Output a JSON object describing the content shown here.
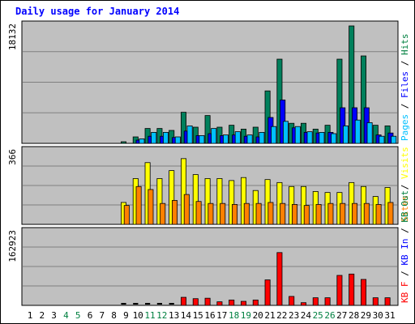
{
  "chart_data": {
    "type": "bar",
    "title": "Daily usage for January 2014",
    "categories": [
      "1",
      "2",
      "3",
      "4",
      "5",
      "6",
      "7",
      "8",
      "9",
      "10",
      "11",
      "12",
      "13",
      "14",
      "15",
      "16",
      "17",
      "18",
      "19",
      "20",
      "21",
      "22",
      "23",
      "24",
      "25",
      "26",
      "27",
      "28",
      "29",
      "30",
      "31"
    ],
    "weekend_days": [
      "4",
      "5",
      "11",
      "12",
      "18",
      "19",
      "25",
      "26"
    ],
    "panels": [
      {
        "id": "top",
        "max_label": "18132",
        "ylim": [
          0,
          18132
        ],
        "legend": [
          {
            "text": "Pages",
            "color": "#00c0ff"
          },
          {
            "text": " / ",
            "color": "#000000"
          },
          {
            "text": "Files",
            "color": "#0000ff"
          },
          {
            "text": " / ",
            "color": "#000000"
          },
          {
            "text": "Hits",
            "color": "#008040"
          }
        ],
        "series": [
          {
            "name": "Hits",
            "color": "#00805c",
            "values": [
              0,
              0,
              0,
              0,
              0,
              0,
              0,
              0,
              250,
              1000,
              2300,
              2300,
              2000,
              4800,
              2500,
              4300,
              2500,
              2800,
              2200,
              2500,
              8100,
              13000,
              3100,
              3100,
              2200,
              2800,
              13000,
              18132,
              13500,
              2800,
              2700
            ]
          },
          {
            "name": "Files",
            "color": "#0000ff",
            "values": [
              0,
              0,
              0,
              0,
              0,
              0,
              0,
              0,
              0,
              500,
              1100,
              1100,
              900,
              1900,
              1200,
              1500,
              1200,
              1300,
              1100,
              1000,
              4000,
              6700,
              2400,
              1700,
              1600,
              1700,
              5500,
              5500,
              5500,
              1300,
              1600
            ]
          },
          {
            "name": "Pages",
            "color": "#00c0ff",
            "values": [
              0,
              0,
              0,
              0,
              0,
              0,
              0,
              0,
              0,
              700,
              1700,
              1700,
              1000,
              2700,
              1200,
              2300,
              1300,
              1800,
              1300,
              1700,
              2600,
              3400,
              2600,
              1800,
              1700,
              1500,
              2700,
              3600,
              3200,
              1100,
              1100
            ]
          }
        ]
      },
      {
        "id": "middle",
        "max_label": "366",
        "ylim": [
          0,
          366
        ],
        "legend": [
          {
            "text": "Sites",
            "color": "#ff8000"
          },
          {
            "text": " / ",
            "color": "#000000"
          },
          {
            "text": "Visits",
            "color": "#ffff00"
          }
        ],
        "series": [
          {
            "name": "Visits",
            "color": "#ffff00",
            "values": [
              0,
              0,
              0,
              0,
              0,
              0,
              0,
              0,
              110,
              230,
              310,
              230,
              270,
              330,
              250,
              230,
              230,
              220,
              235,
              170,
              225,
              210,
              190,
              190,
              165,
              160,
              160,
              210,
              190,
              140,
              185
            ]
          },
          {
            "name": "Sites",
            "color": "#ff8000",
            "values": [
              0,
              0,
              0,
              0,
              0,
              0,
              0,
              0,
              95,
              190,
              175,
              105,
              120,
              150,
              115,
              105,
              105,
              100,
              105,
              105,
              110,
              105,
              100,
              95,
              100,
              105,
              105,
              105,
              105,
              100,
              110
            ]
          }
        ]
      },
      {
        "id": "bottom",
        "max_label": "162923",
        "ylim": [
          0,
          162923
        ],
        "legend": [
          {
            "text": "KB F",
            "color": "#ff0000"
          },
          {
            "text": " / ",
            "color": "#000000"
          },
          {
            "text": "KB In",
            "color": "#0000ff"
          },
          {
            "text": " / ",
            "color": "#000000"
          },
          {
            "text": "KB Out",
            "color": "#008040"
          }
        ],
        "series": [
          {
            "name": "KB F",
            "color": "#ff0000",
            "values": [
              0,
              0,
              0,
              0,
              0,
              0,
              0,
              0,
              2000,
              2000,
              2000,
              2000,
              2000,
              18000,
              15000,
              16000,
              8000,
              12000,
              9000,
              12000,
              57000,
              118000,
              20000,
              6000,
              17000,
              17000,
              67000,
              70000,
              58000,
              17000,
              17000
            ]
          }
        ]
      }
    ]
  }
}
